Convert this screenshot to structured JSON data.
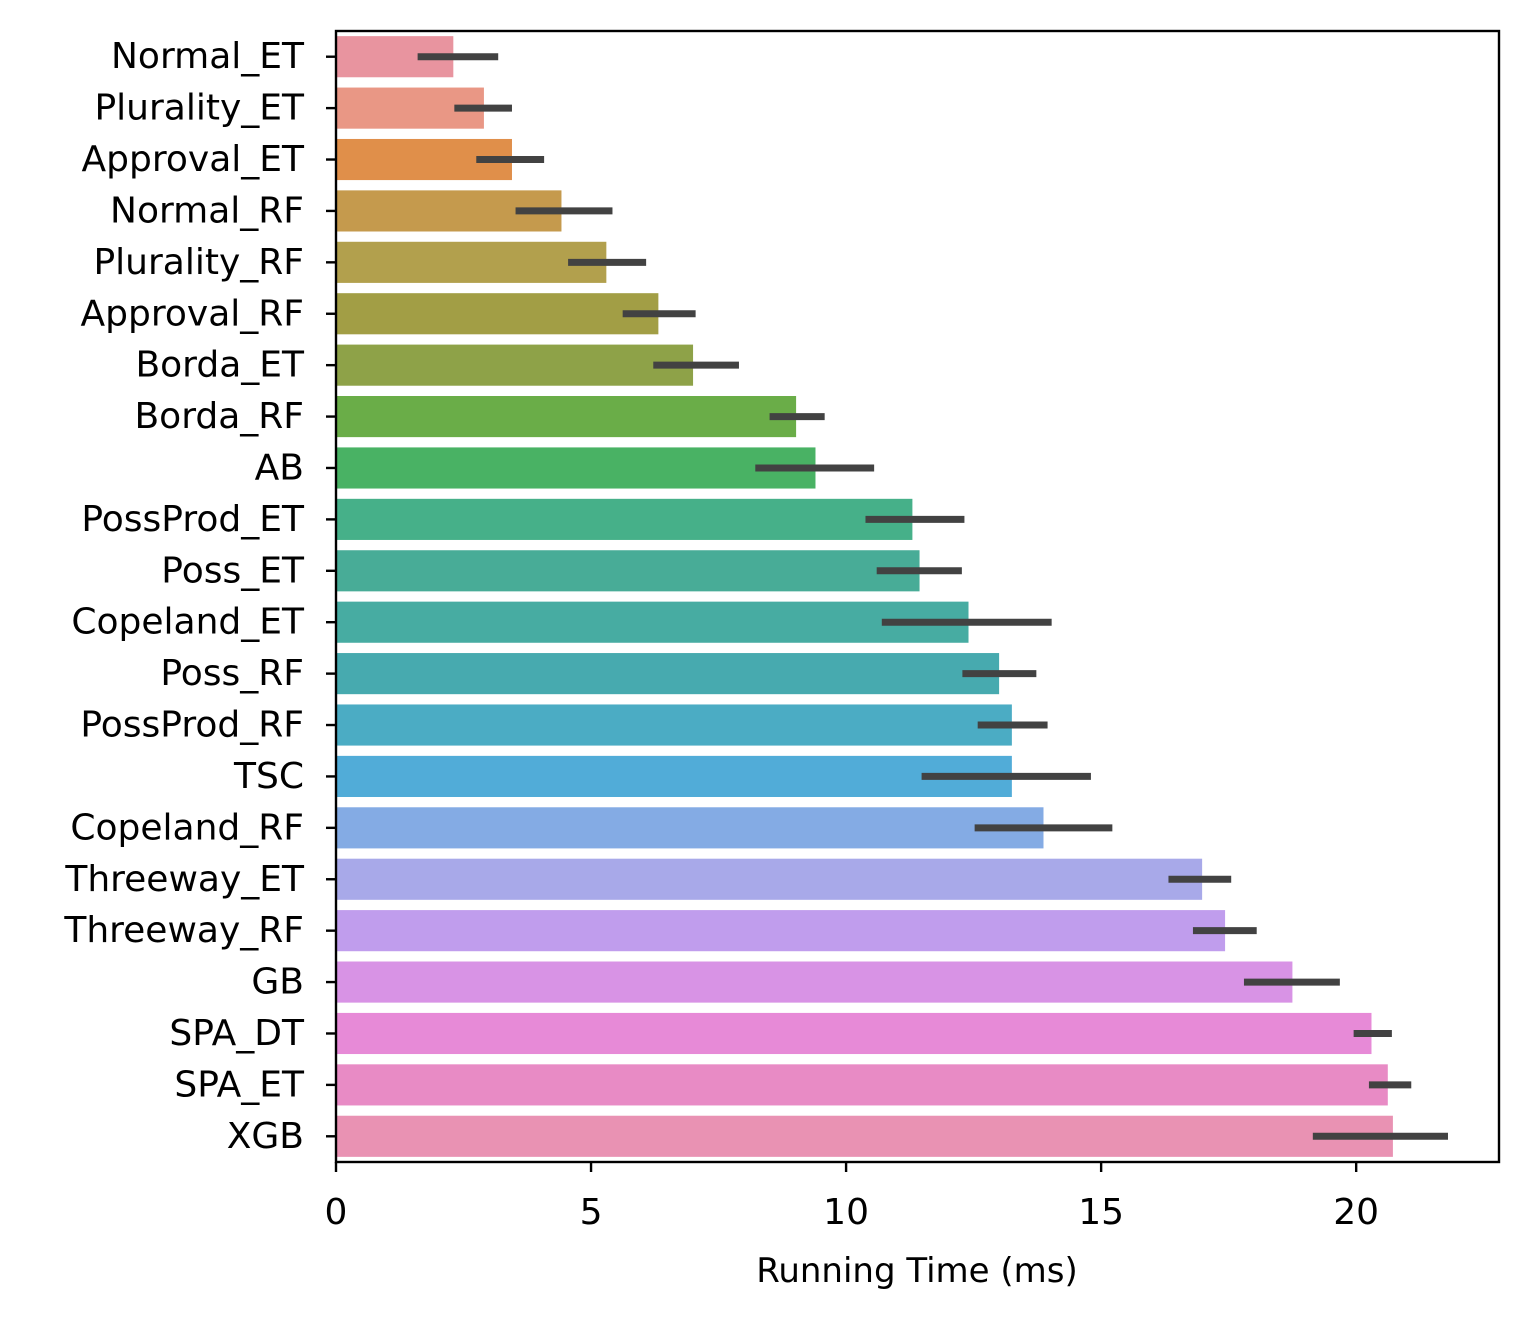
{
  "chart_data": {
    "type": "bar",
    "orientation": "horizontal",
    "title": "",
    "xlabel": "Running Time (ms)",
    "ylabel": "",
    "xlim": [
      0,
      22.8
    ],
    "xticks": [
      0,
      5,
      10,
      15,
      20
    ],
    "xtick_labels": [
      "0",
      "5",
      "10",
      "15",
      "20"
    ],
    "grid": false,
    "legend": "none",
    "error_bar_color": "#424242",
    "categories": [
      "Normal_ET",
      "Plurality_ET",
      "Approval_ET",
      "Normal_RF",
      "Plurality_RF",
      "Approval_RF",
      "Borda_ET",
      "Borda_RF",
      "AB",
      "PossProd_ET",
      "Poss_ET",
      "Copeland_ET",
      "Poss_RF",
      "PossProd_RF",
      "TSC",
      "Copeland_RF",
      "Threeway_ET",
      "Threeway_RF",
      "GB",
      "SPA_DT",
      "SPA_ET",
      "XGB"
    ],
    "values": [
      2.3,
      2.9,
      3.45,
      4.42,
      5.3,
      6.32,
      7.0,
      9.02,
      9.4,
      11.3,
      11.44,
      12.4,
      13.0,
      13.25,
      13.25,
      13.87,
      16.98,
      17.43,
      18.75,
      20.3,
      20.62,
      20.72
    ],
    "error_low": [
      1.6,
      2.32,
      2.75,
      3.52,
      4.55,
      5.62,
      6.22,
      8.5,
      8.22,
      10.38,
      10.6,
      10.7,
      12.28,
      12.58,
      11.48,
      12.52,
      16.32,
      16.8,
      17.8,
      19.95,
      20.25,
      19.15
    ],
    "error_high": [
      3.18,
      3.45,
      4.08,
      5.42,
      6.08,
      7.05,
      7.9,
      9.58,
      10.55,
      12.32,
      12.27,
      14.03,
      13.73,
      13.95,
      14.8,
      15.22,
      17.55,
      18.05,
      19.68,
      20.7,
      21.08,
      21.8
    ],
    "colors": [
      "#e8949f",
      "#e99785",
      "#e08f4a",
      "#c59a4d",
      "#b2a04d",
      "#a29e45",
      "#8ea248",
      "#6aad48",
      "#49b264",
      "#46b089",
      "#48ac97",
      "#47aca2",
      "#47aaaf",
      "#4bacc4",
      "#51acd8",
      "#84abe4",
      "#a8a9e9",
      "#c09ded",
      "#d893e5",
      "#e78ad7",
      "#e88bc5",
      "#e992b3"
    ]
  }
}
